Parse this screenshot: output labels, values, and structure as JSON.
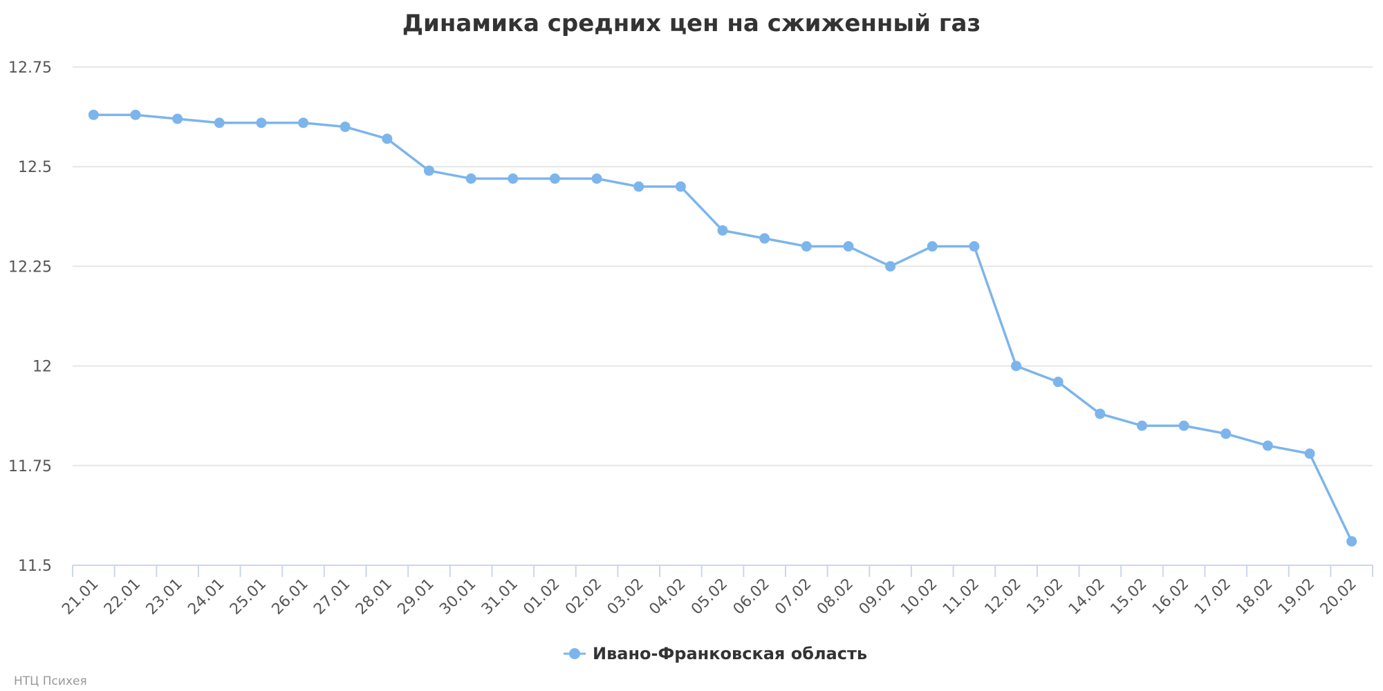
{
  "chart_data": {
    "type": "line",
    "title": "Динамика средних цен на сжиженный газ",
    "xlabel": "",
    "ylabel": "",
    "categories": [
      "21.01",
      "22.01",
      "23.01",
      "24.01",
      "25.01",
      "26.01",
      "27.01",
      "28.01",
      "29.01",
      "30.01",
      "31.01",
      "01.02",
      "02.02",
      "03.02",
      "04.02",
      "05.02",
      "06.02",
      "07.02",
      "08.02",
      "09.02",
      "10.02",
      "11.02",
      "12.02",
      "13.02",
      "14.02",
      "15.02",
      "16.02",
      "17.02",
      "18.02",
      "19.02",
      "20.02"
    ],
    "series": [
      {
        "name": "Ивано-Франковская область",
        "color": "#7cb5ec",
        "values": [
          12.63,
          12.63,
          12.62,
          12.61,
          12.61,
          12.61,
          12.6,
          12.57,
          12.49,
          12.47,
          12.47,
          12.47,
          12.47,
          12.45,
          12.45,
          12.34,
          12.32,
          12.3,
          12.3,
          12.25,
          12.3,
          12.3,
          12.0,
          11.96,
          11.88,
          11.85,
          11.85,
          11.83,
          11.8,
          11.78,
          11.56
        ]
      }
    ],
    "ylim": [
      11.5,
      12.75
    ],
    "yticks": [
      "12.75",
      "12.5",
      "12.25",
      "12",
      "11.75",
      "11.5"
    ],
    "ytick_values": [
      12.75,
      12.5,
      12.25,
      12,
      11.75,
      11.5
    ],
    "grid": true,
    "legend_position": "bottom-center"
  },
  "credit": "НТЦ Психея"
}
